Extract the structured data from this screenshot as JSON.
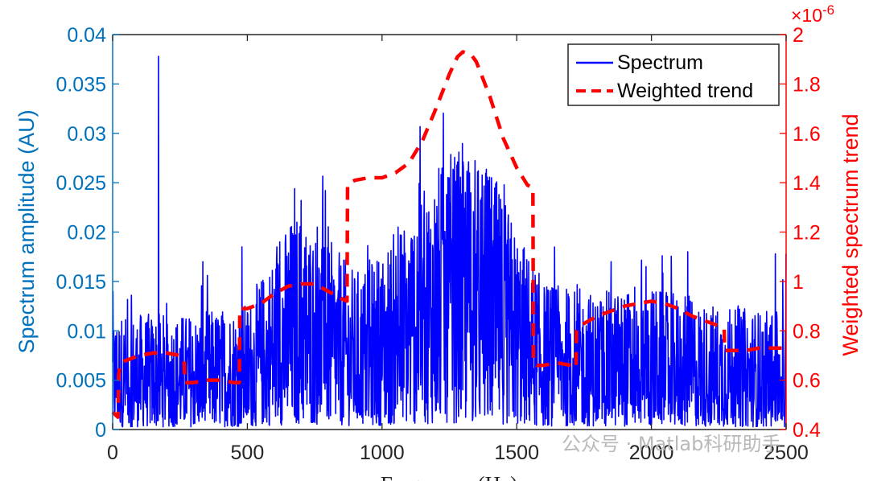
{
  "chart_data": {
    "type": "line",
    "xlabel": "Frequency (Hz)",
    "ylabel_left": "Spectrum amplitude (AU)",
    "ylabel_right": "Weighted spectrum trend",
    "xlim": [
      0,
      2500
    ],
    "ylim_left": [
      0,
      0.04
    ],
    "ylim_right": [
      0.4,
      2.0
    ],
    "right_axis_multiplier": "×10",
    "right_axis_exponent": "-6",
    "x_ticks": [
      "0",
      "500",
      "1000",
      "1500",
      "2000",
      "2500"
    ],
    "y_left_ticks": [
      "0",
      "0.005",
      "0.01",
      "0.015",
      "0.02",
      "0.025",
      "0.03",
      "0.035",
      "0.04"
    ],
    "y_right_ticks": [
      "0.4",
      "0.6",
      "0.8",
      "1",
      "1.2",
      "1.4",
      "1.6",
      "1.8",
      "2"
    ],
    "legend": [
      "Spectrum",
      "Weighted trend"
    ],
    "legend_position": "top-right",
    "series": [
      {
        "name": "Spectrum",
        "axis": "left",
        "color": "#0000ff",
        "style": "solid",
        "noise_amplitude_envelope": {
          "x": [
            0,
            300,
            500,
            600,
            680,
            800,
            900,
            1000,
            1100,
            1200,
            1300,
            1400,
            1500,
            1600,
            1800,
            2000,
            2200,
            2500
          ],
          "y": [
            0.0055,
            0.0055,
            0.006,
            0.0085,
            0.0105,
            0.009,
            0.0075,
            0.0085,
            0.0105,
            0.0125,
            0.0135,
            0.0125,
            0.0095,
            0.007,
            0.0065,
            0.0068,
            0.006,
            0.0055
          ]
        },
        "peaks": [
          {
            "x": 170,
            "y": 0.0378
          },
          {
            "x": 676,
            "y": 0.0244
          },
          {
            "x": 700,
            "y": 0.0232
          },
          {
            "x": 790,
            "y": 0.0242
          },
          {
            "x": 1265,
            "y": 0.0262
          },
          {
            "x": 1320,
            "y": 0.0256
          },
          {
            "x": 1355,
            "y": 0.0261
          },
          {
            "x": 1225,
            "y": 0.0245
          },
          {
            "x": 620,
            "y": 0.019
          },
          {
            "x": 1130,
            "y": 0.0195
          },
          {
            "x": 1240,
            "y": 0.0238
          },
          {
            "x": 1290,
            "y": 0.0232
          },
          {
            "x": 1420,
            "y": 0.021
          },
          {
            "x": 1980,
            "y": 0.0165
          },
          {
            "x": 2135,
            "y": 0.018
          },
          {
            "x": 2500,
            "y": 0.0178
          },
          {
            "x": 2460,
            "y": 0.0178
          },
          {
            "x": 1850,
            "y": 0.017
          },
          {
            "x": 1060,
            "y": 0.0205
          },
          {
            "x": 480,
            "y": 0.0185
          },
          {
            "x": 335,
            "y": 0.017
          },
          {
            "x": 610,
            "y": 0.0185
          },
          {
            "x": 760,
            "y": 0.0205
          }
        ]
      },
      {
        "name": "Weighted trend",
        "axis": "right",
        "color": "#ff0000",
        "style": "dashed",
        "x": [
          0,
          20,
          22,
          30,
          50,
          100,
          150,
          200,
          250,
          265,
          268,
          300,
          350,
          400,
          450,
          470,
          472,
          480,
          500,
          550,
          600,
          650,
          700,
          750,
          800,
          850,
          870,
          872,
          880,
          900,
          950,
          1000,
          1050,
          1100,
          1150,
          1200,
          1250,
          1280,
          1300,
          1330,
          1350,
          1400,
          1450,
          1500,
          1540,
          1560,
          1562,
          1575,
          1600,
          1650,
          1700,
          1720,
          1722,
          1730,
          1750,
          1800,
          1850,
          1900,
          1950,
          2000,
          2050,
          2100,
          2150,
          2200,
          2250,
          2270,
          2272,
          2280,
          2300,
          2350,
          2400,
          2450,
          2500
        ],
        "y": [
          0.47,
          0.45,
          0.62,
          0.67,
          0.68,
          0.7,
          0.71,
          0.71,
          0.7,
          0.68,
          0.59,
          0.59,
          0.6,
          0.6,
          0.59,
          0.59,
          0.89,
          0.89,
          0.89,
          0.91,
          0.95,
          0.98,
          0.99,
          0.99,
          0.96,
          0.93,
          0.92,
          1.39,
          1.4,
          1.41,
          1.42,
          1.42,
          1.44,
          1.48,
          1.57,
          1.7,
          1.84,
          1.91,
          1.93,
          1.92,
          1.89,
          1.75,
          1.58,
          1.46,
          1.39,
          1.38,
          0.67,
          0.66,
          0.66,
          0.67,
          0.66,
          0.65,
          0.8,
          0.81,
          0.83,
          0.86,
          0.88,
          0.9,
          0.91,
          0.92,
          0.91,
          0.89,
          0.86,
          0.84,
          0.82,
          0.81,
          0.72,
          0.72,
          0.72,
          0.72,
          0.73,
          0.73,
          0.73
        ]
      }
    ]
  },
  "watermark": "公众号 · Matlab科研助手",
  "colors": {
    "left_axis": "#0072BD",
    "right_axis": "#ff0000",
    "spectrum": "#0000ff",
    "trend": "#ff0000"
  }
}
